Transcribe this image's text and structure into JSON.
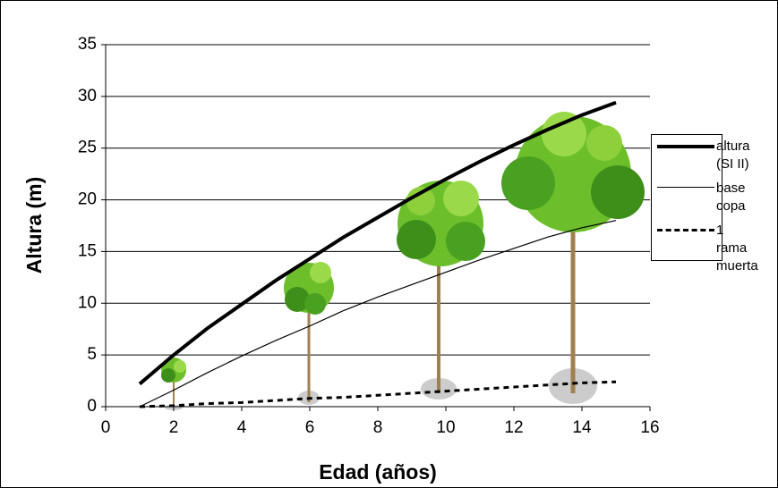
{
  "chart_data": {
    "type": "line",
    "x_label": "Edad (años)",
    "y_label": "Altura (m)",
    "x": [
      1,
      2,
      3,
      4,
      5,
      6,
      7,
      8,
      9,
      10,
      11,
      12,
      13,
      14,
      15
    ],
    "series": [
      {
        "name": "altura (SI II)",
        "color": "#000000",
        "width": 4,
        "style": "solid",
        "values": [
          2.2,
          5.0,
          7.6,
          9.9,
          12.2,
          14.3,
          16.4,
          18.3,
          20.2,
          22.0,
          23.7,
          25.3,
          26.8,
          28.2,
          29.4
        ]
      },
      {
        "name": "base copa",
        "color": "#000000",
        "width": 1.2,
        "style": "solid",
        "values": [
          0,
          1.6,
          3.3,
          4.9,
          6.4,
          7.8,
          9.3,
          10.6,
          11.8,
          13.0,
          14.2,
          15.3,
          16.4,
          17.3,
          18.0
        ]
      },
      {
        "name": "1 rama muerta",
        "color": "#000000",
        "width": 3,
        "style": "dashed",
        "values": [
          0,
          0.1,
          0.3,
          0.4,
          0.6,
          0.8,
          0.9,
          1.1,
          1.3,
          1.5,
          1.7,
          1.9,
          2.1,
          2.3,
          2.4
        ]
      }
    ],
    "xlim": [
      0,
      16
    ],
    "xticks": [
      0,
      2,
      4,
      6,
      8,
      10,
      12,
      14,
      16
    ],
    "ylim": [
      0,
      35
    ],
    "yticks": [
      0,
      5,
      10,
      15,
      20,
      25,
      30,
      35
    ],
    "grid": true,
    "legend": "right"
  }
}
